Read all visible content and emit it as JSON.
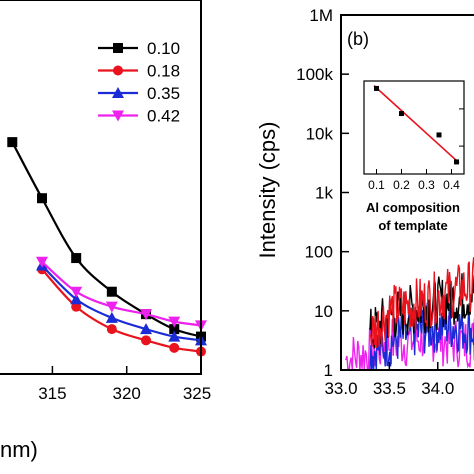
{
  "chart_data": [
    {
      "type": "line",
      "panel": "left",
      "xlabel_fragment": "nm)",
      "x_ticks": [
        "315",
        "320",
        "325"
      ],
      "xlim": [
        310.8,
        325
      ],
      "ylim": [
        0,
        1
      ],
      "legend": "top-right",
      "series": [
        {
          "name": "0.10",
          "color": "#000000",
          "marker": "square",
          "x": [
            312.3,
            314.3,
            316.6,
            319.0,
            321.3,
            323.2,
            325.0
          ],
          "y": [
            0.62,
            0.47,
            0.31,
            0.22,
            0.16,
            0.12,
            0.1
          ]
        },
        {
          "name": "0.18",
          "color": "#e8131d",
          "marker": "circle",
          "x": [
            314.3,
            316.6,
            319.0,
            321.3,
            323.2,
            325.0
          ],
          "y": [
            0.28,
            0.18,
            0.12,
            0.09,
            0.07,
            0.06
          ]
        },
        {
          "name": "0.35",
          "color": "#1b2cd6",
          "marker": "triangle-up",
          "x": [
            314.3,
            316.6,
            319.0,
            321.3,
            323.2,
            325.0
          ],
          "y": [
            0.29,
            0.2,
            0.15,
            0.12,
            0.1,
            0.09
          ]
        },
        {
          "name": "0.42",
          "color": "#ee22ee",
          "marker": "triangle-down",
          "x": [
            314.3,
            316.6,
            319.0,
            321.3,
            323.2,
            325.0
          ],
          "y": [
            0.3,
            0.22,
            0.18,
            0.16,
            0.14,
            0.13
          ]
        }
      ]
    },
    {
      "type": "line",
      "panel": "right",
      "panel_label": "(b)",
      "ylabel": "Intensity (cps)",
      "yscale": "log",
      "ylim": [
        1,
        1000000
      ],
      "y_ticks": [
        "1",
        "10",
        "100",
        "1k",
        "10k",
        "100k",
        "1M"
      ],
      "xlim": [
        33.0,
        34.55
      ],
      "x_ticks": [
        "33.0",
        "33.5",
        "34.0"
      ],
      "x_tick_values": [
        33.0,
        33.5,
        34.0
      ],
      "series": [
        {
          "name": "0.10",
          "color": "#000000",
          "x": [
            33.3,
            33.5,
            33.7,
            33.9,
            34.1,
            34.3,
            34.5
          ],
          "y": [
            4,
            8,
            10,
            12,
            15,
            18,
            30
          ]
        },
        {
          "name": "0.18",
          "color": "#e8131d",
          "x": [
            33.3,
            33.5,
            33.7,
            33.9,
            34.1,
            34.3,
            34.5
          ],
          "y": [
            4,
            10,
            12,
            15,
            20,
            25,
            40
          ]
        },
        {
          "name": "0.35",
          "color": "#1b2cd6",
          "x": [
            33.3,
            33.5,
            33.7,
            33.9,
            34.1,
            34.3,
            34.5
          ],
          "y": [
            2,
            3,
            4,
            5,
            6,
            5,
            4
          ]
        },
        {
          "name": "0.42",
          "color": "#ee22ee",
          "x": [
            33.05,
            33.3,
            33.5,
            33.7,
            33.9,
            34.1,
            34.3,
            34.5
          ],
          "y": [
            1.5,
            2,
            3,
            3,
            4,
            3,
            3,
            3
          ]
        }
      ],
      "inset": {
        "type": "scatter",
        "xlabel": "Al composition of template",
        "xlabel_lines": [
          "Al composition",
          "of template"
        ],
        "x_ticks": [
          "0.1",
          "0.2",
          "0.3",
          "0.4"
        ],
        "x_tick_values": [
          0.1,
          0.2,
          0.3,
          0.4
        ],
        "xlim": [
          0.05,
          0.45
        ],
        "ylim": [
          0,
          1
        ],
        "points": {
          "x": [
            0.1,
            0.2,
            0.35,
            0.42
          ],
          "y": [
            0.92,
            0.65,
            0.42,
            0.13
          ]
        },
        "fit_line": {
          "x": [
            0.09,
            0.43
          ],
          "y": [
            0.95,
            0.12
          ],
          "color": "#e8131d"
        }
      }
    }
  ]
}
